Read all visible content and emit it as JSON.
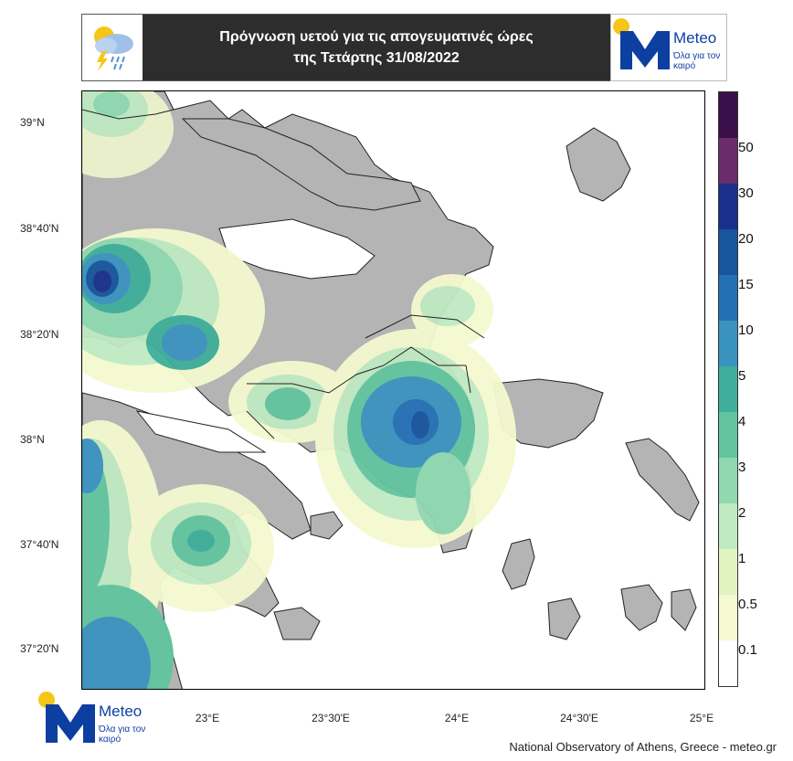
{
  "header": {
    "title_line1": "Πρόγνωση υετού για τις απογευματινές ώρες",
    "title_line2": "της Τετάρτης 31/08/2022",
    "weather_icon": "rain-thunder-cloud-icon"
  },
  "logo": {
    "brand": "Meteo",
    "tagline": "Όλα για τον καιρό",
    "colors": {
      "blue": "#0d3fa0",
      "sun": "#f5c518"
    }
  },
  "map": {
    "lat_labels": [
      "39°N",
      "38°40'N",
      "38°20'N",
      "38°N",
      "37°40'N",
      "37°20'N"
    ],
    "lon_labels": [
      "23°E",
      "23°30'E",
      "24°E",
      "24°30'E",
      "25°E"
    ],
    "land_color": "#b4b4b4",
    "sea_color": "#ffffff"
  },
  "legend": {
    "levels": [
      "0.1",
      "0.5",
      "1",
      "2",
      "3",
      "4",
      "5",
      "10",
      "15",
      "20",
      "30",
      "50"
    ],
    "colors": [
      "#ffffff",
      "#f4f9cf",
      "#e2f3c2",
      "#bfe9c1",
      "#8fd8b0",
      "#62c49f",
      "#3fae9a",
      "#3a93bf",
      "#2470b4",
      "#17559c",
      "#1a2f8c",
      "#6a2c6a",
      "#3b0f4a"
    ]
  },
  "footer": {
    "credit": "National Observatory of Athens, Greece - meteo.gr"
  }
}
